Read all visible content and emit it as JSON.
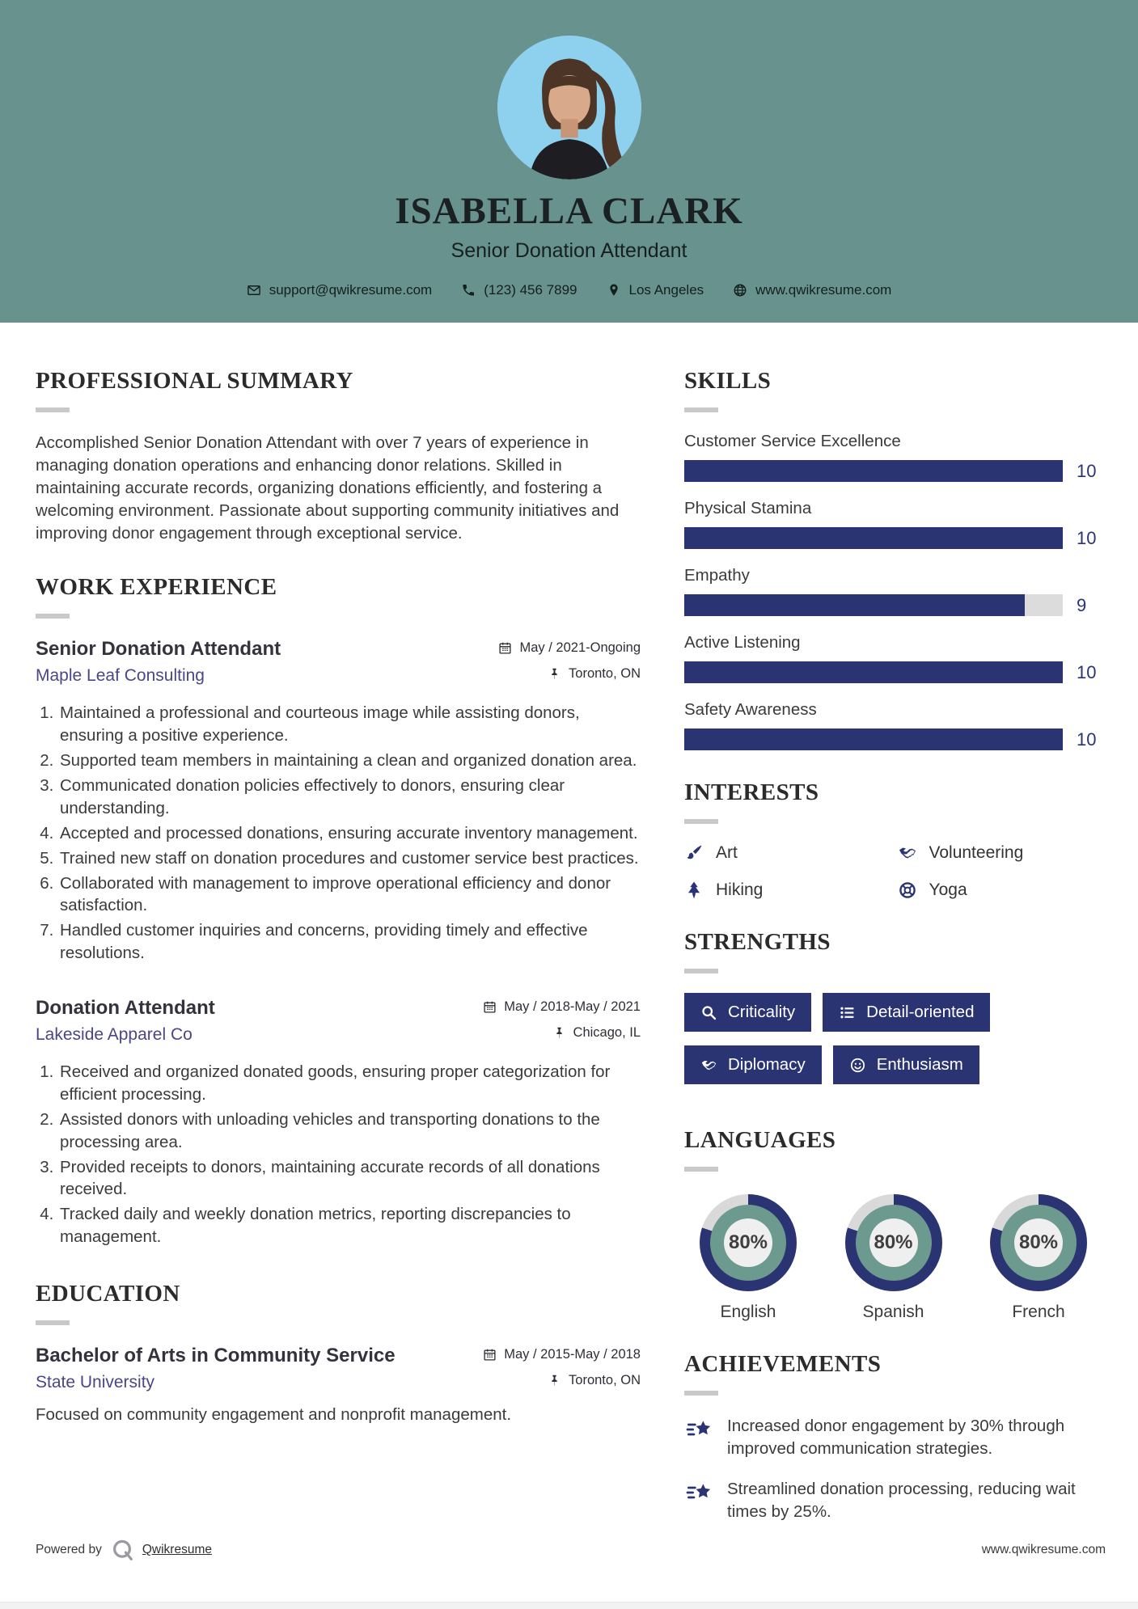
{
  "header": {
    "name": "ISABELLA CLARK",
    "title": "Senior Donation Attendant",
    "contacts": [
      {
        "icon": "email-icon",
        "text": "support@qwikresume.com"
      },
      {
        "icon": "phone-icon",
        "text": "(123) 456 7899"
      },
      {
        "icon": "location-icon",
        "text": "Los Angeles"
      },
      {
        "icon": "website-icon",
        "text": "www.qwikresume.com"
      }
    ]
  },
  "summary": {
    "heading": "PROFESSIONAL SUMMARY",
    "text": "Accomplished Senior Donation Attendant with over 7 years of experience in managing donation operations and enhancing donor relations. Skilled in maintaining accurate records, organizing donations efficiently, and fostering a welcoming environment. Passionate about supporting community initiatives and improving donor engagement through exceptional service."
  },
  "work": {
    "heading": "WORK EXPERIENCE",
    "jobs": [
      {
        "title": "Senior Donation Attendant",
        "company": "Maple Leaf Consulting",
        "dates": "May / 2021-Ongoing",
        "location": "Toronto, ON",
        "bullets": [
          "Maintained a professional and courteous image while assisting donors, ensuring a positive experience.",
          "Supported team members in maintaining a clean and organized donation area.",
          "Communicated donation policies effectively to donors, ensuring clear understanding.",
          "Accepted and processed donations, ensuring accurate inventory management.",
          "Trained new staff on donation procedures and customer service best practices.",
          "Collaborated with management to improve operational efficiency and donor satisfaction.",
          "Handled customer inquiries and concerns, providing timely and effective resolutions."
        ]
      },
      {
        "title": "Donation Attendant",
        "company": "Lakeside Apparel Co",
        "dates": "May / 2018-May / 2021",
        "location": "Chicago, IL",
        "bullets": [
          "Received and organized donated goods, ensuring proper categorization for efficient processing.",
          "Assisted donors with unloading vehicles and transporting donations to the processing area.",
          "Provided receipts to donors, maintaining accurate records of all donations received.",
          "Tracked daily and weekly donation metrics, reporting discrepancies to management."
        ]
      }
    ]
  },
  "education": {
    "heading": "EDUCATION",
    "degree": "Bachelor of Arts in Community Service",
    "school": "State University",
    "dates": "May / 2015-May / 2018",
    "location": "Toronto, ON",
    "note": "Focused on community engagement and nonprofit management."
  },
  "skills": {
    "heading": "SKILLS",
    "max": 10,
    "items": [
      {
        "label": "Customer Service Excellence",
        "value": 10
      },
      {
        "label": "Physical Stamina",
        "value": 10
      },
      {
        "label": "Empathy",
        "value": 9
      },
      {
        "label": "Active Listening",
        "value": 10
      },
      {
        "label": "Safety Awareness",
        "value": 10
      }
    ]
  },
  "interests": {
    "heading": "INTERESTS",
    "items": [
      {
        "icon": "paintbrush-icon",
        "label": "Art"
      },
      {
        "icon": "handshake-icon",
        "label": "Volunteering"
      },
      {
        "icon": "pine-tree-icon",
        "label": "Hiking"
      },
      {
        "icon": "wheel-icon",
        "label": "Yoga"
      }
    ]
  },
  "strengths": {
    "heading": "STRENGTHS",
    "items": [
      {
        "icon": "magnifier-icon",
        "label": "Criticality"
      },
      {
        "icon": "list-icon",
        "label": "Detail-oriented"
      },
      {
        "icon": "handshake-icon",
        "label": "Diplomacy"
      },
      {
        "icon": "smiley-icon",
        "label": "Enthusiasm"
      }
    ]
  },
  "languages": {
    "heading": "LANGUAGES",
    "items": [
      {
        "label": "English",
        "percent": 80,
        "percent_label": "80%"
      },
      {
        "label": "Spanish",
        "percent": 80,
        "percent_label": "80%"
      },
      {
        "label": "French",
        "percent": 80,
        "percent_label": "80%"
      }
    ]
  },
  "achievements": {
    "heading": "ACHIEVEMENTS",
    "items": [
      "Increased donor engagement by 30% through improved communication strategies.",
      "Streamlined donation processing, reducing wait times by 25%."
    ]
  },
  "footer": {
    "powered_by": "Powered by",
    "brand": "Qwikresume",
    "site": "www.qwikresume.com"
  },
  "colors": {
    "header_bg": "#67928D",
    "accent_navy": "#2B3472",
    "link_purple": "#4B4685",
    "photo_bg": "#8ED1EF",
    "bar_track": "#DCDCDC",
    "donut_ring": "#6C9A8F",
    "donut_center": "#EFEFEF",
    "divider_gray": "#C9C9C9"
  }
}
